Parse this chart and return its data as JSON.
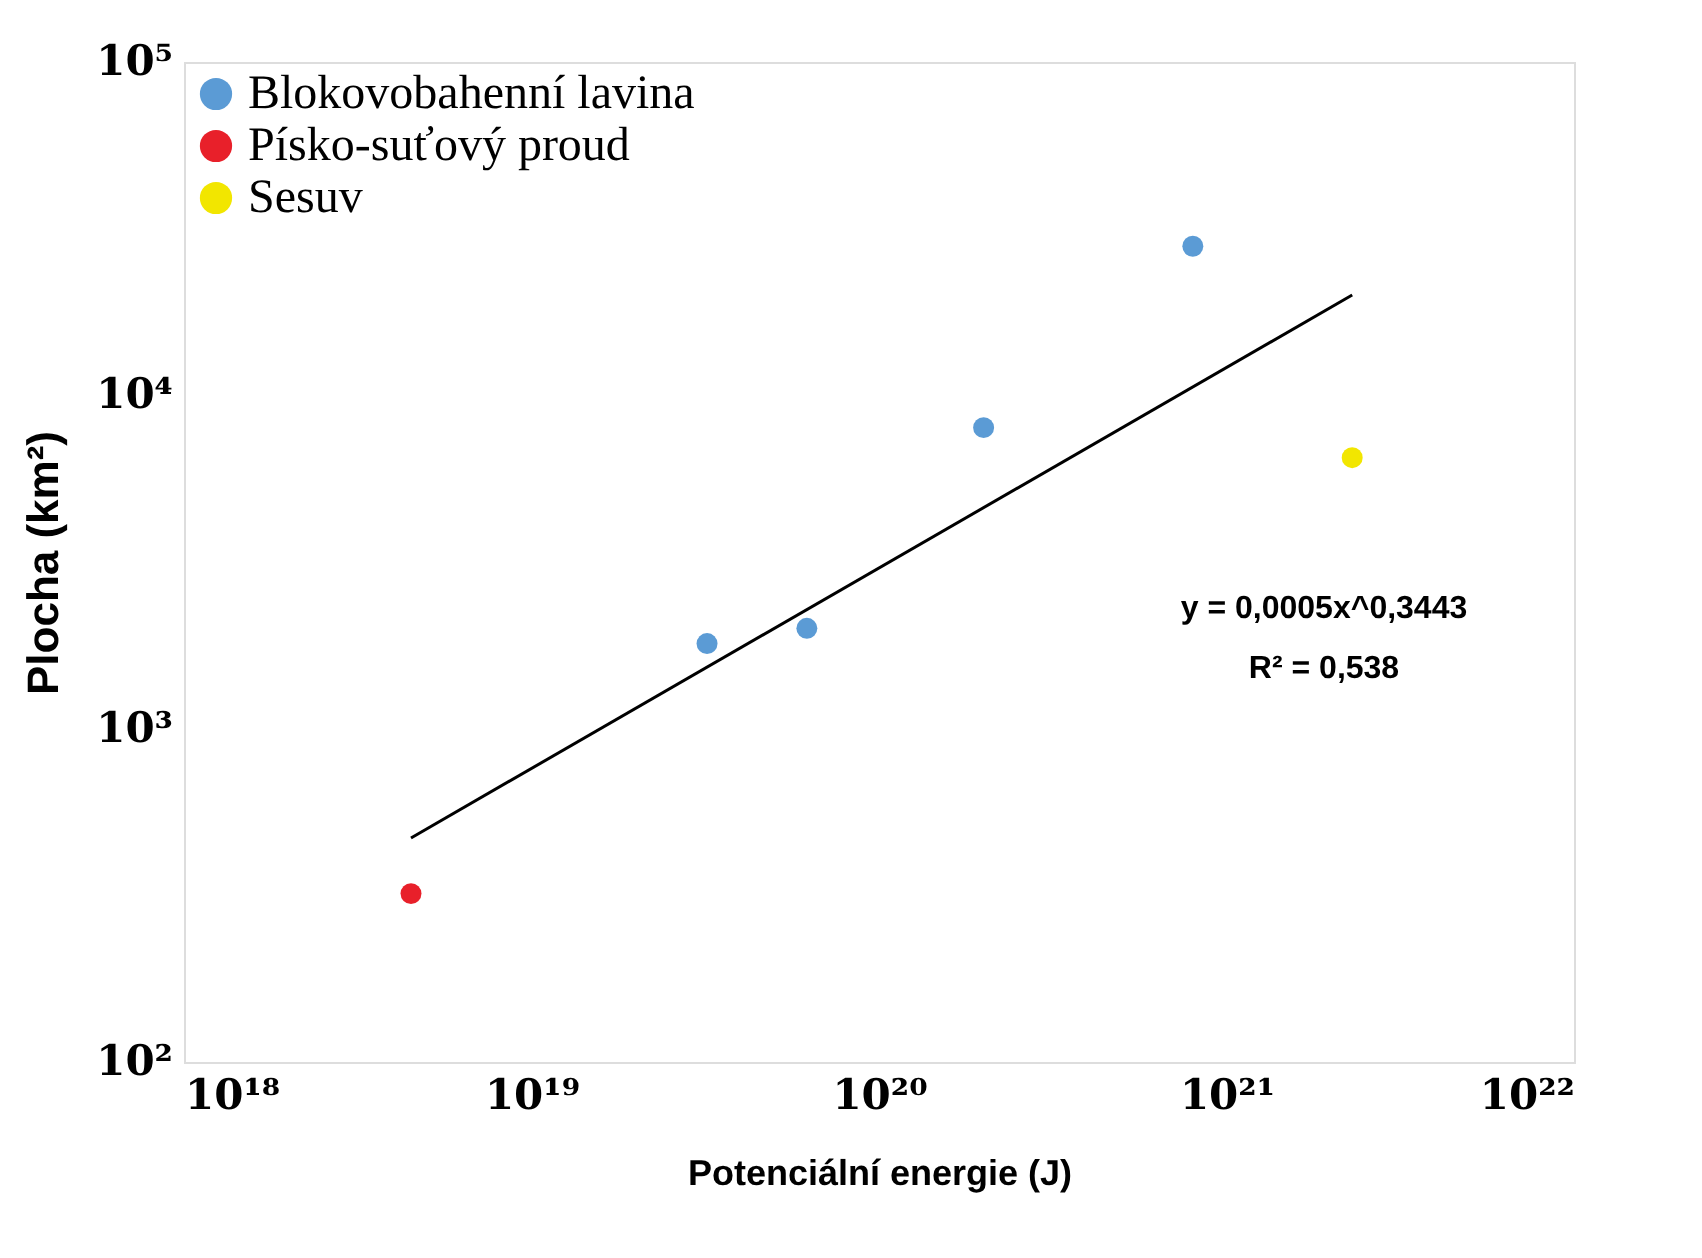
{
  "chart_data": {
    "type": "scatter",
    "xlabel": "Potenciální energie (J)",
    "ylabel": "Plocha (km²)",
    "log": "xy",
    "xlim": [
      1e+18,
      1e+22
    ],
    "ylim": [
      100,
      100000
    ],
    "xticks": [
      {
        "value": 1e+18,
        "label": "10¹⁸"
      },
      {
        "value": 1e+19,
        "label": "10¹⁹"
      },
      {
        "value": 1e+20,
        "label": "10²⁰"
      },
      {
        "value": 1e+21,
        "label": "10²¹"
      },
      {
        "value": 1e+22,
        "label": "10²²"
      }
    ],
    "yticks": [
      {
        "value": 100,
        "label": "10²"
      },
      {
        "value": 1000,
        "label": "10³"
      },
      {
        "value": 10000,
        "label": "10⁴"
      },
      {
        "value": 100000,
        "label": "10⁵"
      }
    ],
    "grid": false,
    "legend": "top left",
    "marker": "circle",
    "series": [
      {
        "name": "Blokovobahenní lavina",
        "color": "#5b9bd5",
        "x": [
          3.2e+19,
          6.2e+19,
          2e+20,
          8e+20
        ],
        "values": [
          1800,
          2000,
          8000,
          28000
        ]
      },
      {
        "name": "Písko-suťový proud",
        "color": "#e8202a",
        "x": [
          4.5e+18
        ],
        "values": [
          320
        ]
      },
      {
        "name": "Sesuv",
        "color": "#f2e600",
        "x": [
          2.3e+21
        ],
        "values": [
          6500
        ]
      },
      {
        "type": "line",
        "color": "#000000",
        "line_style": "solid",
        "marker": "none",
        "x": [
          4.5e+18,
          2.3e+21
        ],
        "values": [
          470,
          20000
        ]
      }
    ],
    "annotations": [
      "y = 0,0005x^0,3443",
      "R² = 0,538"
    ]
  }
}
